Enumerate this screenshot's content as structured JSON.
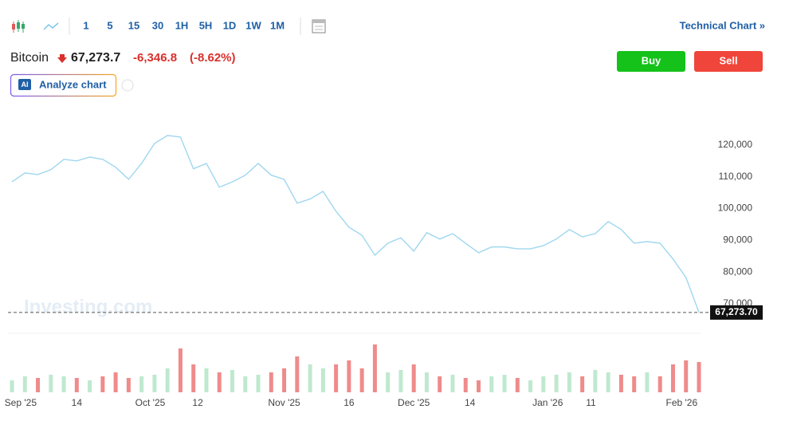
{
  "toolbar": {
    "intervals": [
      "1",
      "5",
      "15",
      "30",
      "1H",
      "5H",
      "1D",
      "1W",
      "1M"
    ],
    "technical_chart": "Technical Chart »"
  },
  "quote": {
    "name": "Bitcoin",
    "price": "67,273.7",
    "change": "-6,346.8",
    "change_percent": "(-8.62%)"
  },
  "buttons": {
    "buy": "Buy",
    "sell": "Sell",
    "ai_badge": "AI",
    "analyze": "Analyze chart"
  },
  "watermark": "Investing.com",
  "chart_data": {
    "type": "line",
    "color": "#9fd7ef",
    "values": [
      108400,
      111200,
      110700,
      112200,
      115500,
      115000,
      116200,
      115500,
      113000,
      109200,
      114200,
      120500,
      123000,
      122500,
      112500,
      114200,
      106700,
      108400,
      110500,
      114200,
      110500,
      109200,
      101700,
      103000,
      105400,
      99100,
      94100,
      91600,
      85300,
      89100,
      90800,
      86600,
      92400,
      90400,
      92100,
      89100,
      86100,
      87900,
      87900,
      87300,
      87300,
      88300,
      90400,
      93400,
      91100,
      92100,
      95900,
      93400,
      89100,
      89600,
      89100,
      84100,
      78300,
      67300
    ],
    "xticks": [
      {
        "value": 0.667,
        "label": "Sep '25"
      },
      {
        "value": 5,
        "label": "14"
      },
      {
        "value": 10.667,
        "label": "Oct '25"
      },
      {
        "value": 14.333,
        "label": "12"
      },
      {
        "value": 21,
        "label": "Nov '25"
      },
      {
        "value": 26,
        "label": "16"
      },
      {
        "value": 31,
        "label": "Dec '25"
      },
      {
        "value": 35.333,
        "label": "14"
      },
      {
        "value": 41.333,
        "label": "Jan '26"
      },
      {
        "value": 44.667,
        "label": "11"
      },
      {
        "value": 51.667,
        "label": "Feb '26"
      }
    ],
    "ylim": [
      66000,
      130000
    ],
    "yticks": [
      {
        "value": 70000,
        "label": "70,000"
      },
      {
        "value": 80000,
        "label": "80,000"
      },
      {
        "value": 90000,
        "label": "90,000"
      },
      {
        "value": 100000,
        "label": "100,000"
      },
      {
        "value": 110000,
        "label": "110,000"
      },
      {
        "value": 120000,
        "label": "120,000"
      }
    ],
    "last_value": {
      "value": 67273.7,
      "label": "67,273.70"
    },
    "volume": {
      "values": [
        15,
        20,
        18,
        22,
        20,
        18,
        15,
        20,
        25,
        18,
        20,
        22,
        30,
        55,
        35,
        30,
        25,
        28,
        20,
        22,
        25,
        30,
        45,
        35,
        30,
        35,
        40,
        30,
        60,
        25,
        28,
        35,
        25,
        20,
        22,
        18,
        15,
        20,
        22,
        18,
        15,
        20,
        22,
        25,
        20,
        28,
        25,
        22,
        20,
        25,
        20,
        35,
        40,
        38
      ],
      "up_color": "#bfe9cf",
      "down_color": "#ef8b8b"
    }
  }
}
